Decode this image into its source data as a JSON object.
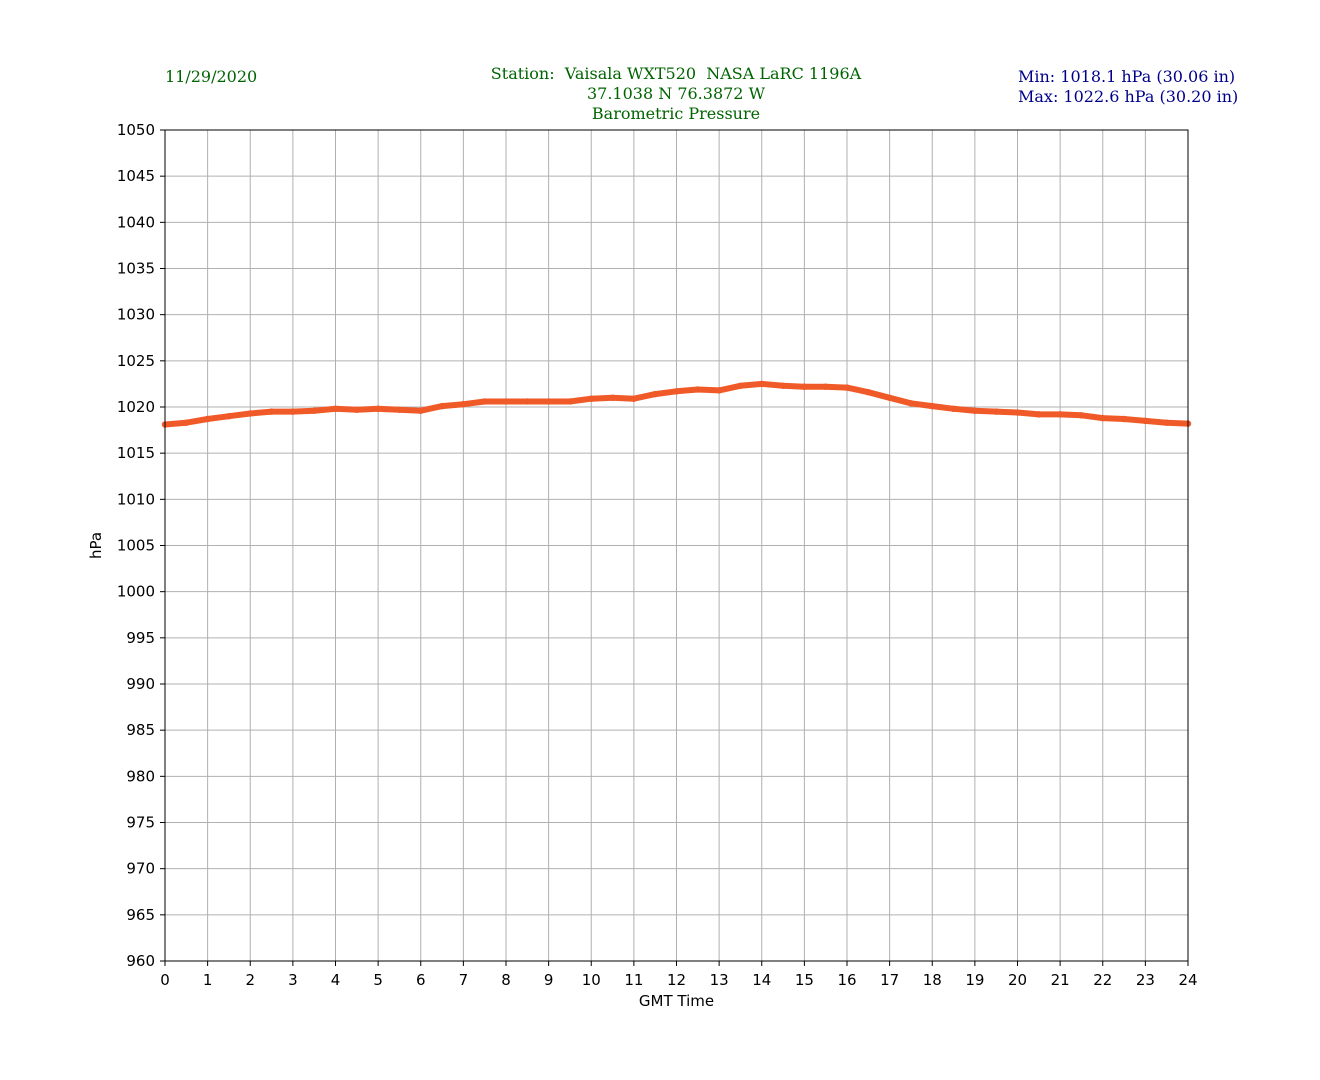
{
  "header": {
    "date": "11/29/2020",
    "station": "Station:  Vaisala WXT520  NASA LaRC 1196A",
    "coords": "37.1038 N 76.3872 W",
    "title": "Barometric Pressure",
    "min": "Min: 1018.1 hPa (30.06 in)",
    "max": "Max: 1022.6 hPa (30.20 in)"
  },
  "colors": {
    "header_text": "#006400",
    "minmax_text": "#00008b",
    "series": "#f05a28",
    "grid": "#b0b0b0"
  },
  "chart_data": {
    "type": "line",
    "title": "Barometric Pressure",
    "xlabel": "GMT Time",
    "ylabel": "hPa",
    "xlim": [
      0,
      24
    ],
    "ylim": [
      960,
      1050
    ],
    "xticks": [
      0,
      1,
      2,
      3,
      4,
      5,
      6,
      7,
      8,
      9,
      10,
      11,
      12,
      13,
      14,
      15,
      16,
      17,
      18,
      19,
      20,
      21,
      22,
      23,
      24
    ],
    "yticks": [
      960,
      965,
      970,
      975,
      980,
      985,
      990,
      995,
      1000,
      1005,
      1010,
      1015,
      1020,
      1025,
      1030,
      1035,
      1040,
      1045,
      1050
    ],
    "grid": true,
    "series": [
      {
        "x": [
          0,
          0.5,
          1,
          1.5,
          2,
          2.5,
          3,
          3.5,
          4,
          4.5,
          5,
          5.5,
          6,
          6.5,
          7,
          7.5,
          8,
          8.5,
          9,
          9.5,
          10,
          10.5,
          11,
          11.5,
          12,
          12.5,
          13,
          13.5,
          14,
          14.5,
          15,
          15.5,
          16,
          16.5,
          17,
          17.5,
          18,
          18.5,
          19,
          19.5,
          20,
          20.5,
          21,
          21.5,
          22,
          22.5,
          23,
          23.5,
          24
        ],
        "y": [
          1018.1,
          1018.3,
          1018.7,
          1019.0,
          1019.3,
          1019.5,
          1019.5,
          1019.6,
          1019.8,
          1019.7,
          1019.8,
          1019.7,
          1019.6,
          1020.1,
          1020.3,
          1020.6,
          1020.6,
          1020.6,
          1020.6,
          1020.6,
          1020.9,
          1021.0,
          1020.9,
          1021.4,
          1021.7,
          1021.9,
          1021.8,
          1022.3,
          1022.5,
          1022.3,
          1022.2,
          1022.2,
          1022.1,
          1021.6,
          1021.0,
          1020.4,
          1020.1,
          1019.8,
          1019.6,
          1019.5,
          1019.4,
          1019.2,
          1019.2,
          1019.1,
          1018.8,
          1018.7,
          1018.5,
          1018.3,
          1018.2
        ]
      }
    ]
  }
}
